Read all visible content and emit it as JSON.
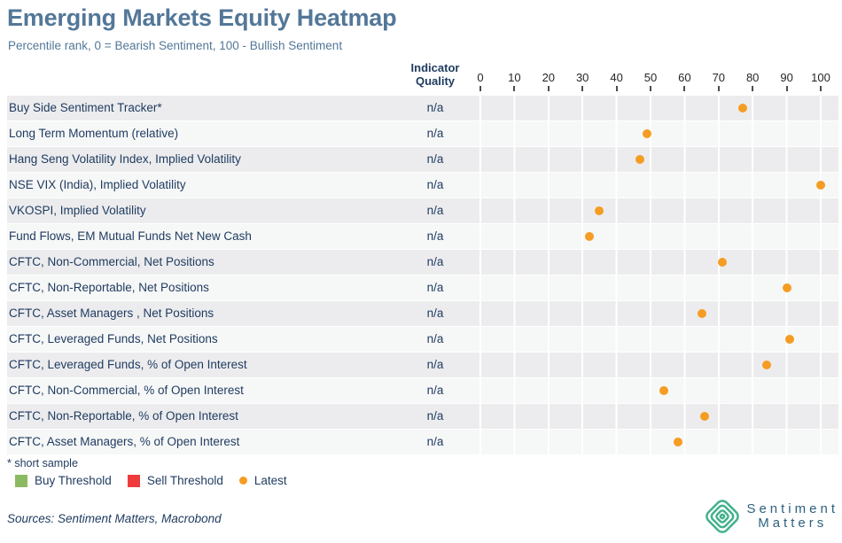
{
  "header": {
    "title": "Emerging Markets Equity Heatmap",
    "subtitle": "Percentile rank, 0 = Bearish Sentiment, 100 - Bullish Sentiment"
  },
  "table": {
    "quality_header_line1": "Indicator",
    "quality_header_line2": "Quality",
    "quality_value": "n/a"
  },
  "chart_data": {
    "type": "scatter",
    "title": "Emerging Markets Equity Heatmap",
    "subtitle": "Percentile rank, 0 = Bearish Sentiment, 100 - Bullish Sentiment",
    "xlim": [
      0,
      100
    ],
    "x_ticks": [
      0,
      10,
      20,
      30,
      40,
      50,
      60,
      70,
      80,
      90,
      100
    ],
    "grid": "vertical-white-gridlines-on-alternating-row-bands",
    "legend_position": "bottom-left",
    "series_name": "Latest",
    "rows": [
      {
        "label": "Buy Side Sentiment Tracker*",
        "indicator_quality": "n/a",
        "latest": 77
      },
      {
        "label": "Long Term Momentum (relative)",
        "indicator_quality": "n/a",
        "latest": 49
      },
      {
        "label": "Hang Seng Volatility Index, Implied Volatility",
        "indicator_quality": "n/a",
        "latest": 47
      },
      {
        "label": "NSE VIX (India), Implied Volatility",
        "indicator_quality": "n/a",
        "latest": 100
      },
      {
        "label": "VKOSPI, Implied Volatility",
        "indicator_quality": "n/a",
        "latest": 35
      },
      {
        "label": "Fund Flows, EM Mutual Funds Net New Cash",
        "indicator_quality": "n/a",
        "latest": 32
      },
      {
        "label": "CFTC, Non-Commercial, Net Positions",
        "indicator_quality": "n/a",
        "latest": 71
      },
      {
        "label": "CFTC, Non-Reportable, Net Positions",
        "indicator_quality": "n/a",
        "latest": 90
      },
      {
        "label": "CFTC, Asset Managers , Net Positions",
        "indicator_quality": "n/a",
        "latest": 65
      },
      {
        "label": "CFTC, Leveraged Funds, Net Positions",
        "indicator_quality": "n/a",
        "latest": 91
      },
      {
        "label": "CFTC, Leveraged Funds, % of Open Interest",
        "indicator_quality": "n/a",
        "latest": 84
      },
      {
        "label": "CFTC, Non-Commercial, % of Open Interest",
        "indicator_quality": "n/a",
        "latest": 54
      },
      {
        "label": "CFTC, Non-Reportable, % of Open Interest",
        "indicator_quality": "n/a",
        "latest": 66
      },
      {
        "label": "CFTC, Asset Managers, % of Open Interest",
        "indicator_quality": "n/a",
        "latest": 58
      }
    ]
  },
  "footer": {
    "footnote": "* short sample",
    "legend": [
      {
        "label": "Buy Threshold",
        "shape": "square",
        "color": "#8cba62"
      },
      {
        "label": "Sell Threshold",
        "shape": "square",
        "color": "#ee3c3c"
      },
      {
        "label": "Latest",
        "shape": "circle",
        "color": "#f59c23"
      }
    ],
    "sources": "Sources: Sentiment Matters, Macrobond"
  },
  "logo": {
    "line1": "Sentiment",
    "line2": "Matters"
  },
  "colors": {
    "title": "#537798",
    "row_text": "#1e3a5f",
    "band_dark": "#ececee",
    "band_light": "#f6f7f7",
    "latest_dot": "#f59c23",
    "buy_green": "#8cba62",
    "sell_red": "#ee3c3c",
    "axis_text": "#262626",
    "logo_green": "#41b18c",
    "logo_text": "#2d627f"
  }
}
